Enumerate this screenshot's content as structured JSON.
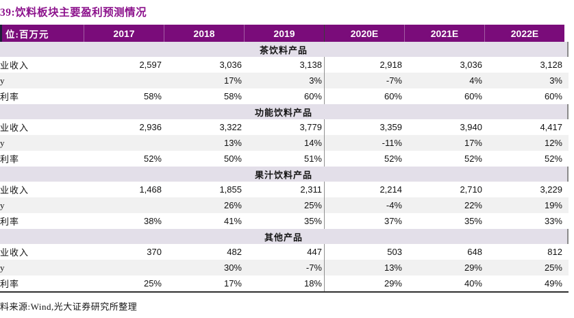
{
  "title": "39:饮料板块主要盈利预测情况",
  "header": {
    "unit_label": "位:百万元",
    "columns": [
      "2017",
      "2018",
      "2019",
      "2020E",
      "2021E",
      "2022E"
    ]
  },
  "groups": [
    {
      "name": "茶饮料产品",
      "rows": [
        {
          "label": "业收入",
          "values": [
            "2,597",
            "3,036",
            "3,138",
            "2,918",
            "3,036",
            "3,128"
          ]
        },
        {
          "label": "y",
          "values": [
            "",
            "17%",
            "3%",
            "-7%",
            "4%",
            "3%"
          ]
        },
        {
          "label": "利率",
          "values": [
            "58%",
            "58%",
            "60%",
            "60%",
            "60%",
            "60%"
          ]
        }
      ]
    },
    {
      "name": "功能饮料产品",
      "rows": [
        {
          "label": "业收入",
          "values": [
            "2,936",
            "3,322",
            "3,779",
            "3,359",
            "3,940",
            "4,417"
          ]
        },
        {
          "label": "y",
          "values": [
            "",
            "13%",
            "14%",
            "-11%",
            "17%",
            "12%"
          ]
        },
        {
          "label": "利率",
          "values": [
            "52%",
            "50%",
            "51%",
            "52%",
            "52%",
            "52%"
          ]
        }
      ]
    },
    {
      "name": "果汁饮料产品",
      "rows": [
        {
          "label": "业收入",
          "values": [
            "1,468",
            "1,855",
            "2,311",
            "2,214",
            "2,710",
            "3,229"
          ]
        },
        {
          "label": "y",
          "values": [
            "",
            "26%",
            "25%",
            "-4%",
            "22%",
            "19%"
          ]
        },
        {
          "label": "利率",
          "values": [
            "38%",
            "41%",
            "35%",
            "37%",
            "35%",
            "33%"
          ]
        }
      ]
    },
    {
      "name": "其他产品",
      "rows": [
        {
          "label": "业收入",
          "values": [
            "370",
            "482",
            "447",
            "503",
            "648",
            "812"
          ]
        },
        {
          "label": "y",
          "values": [
            "",
            "30%",
            "-7%",
            "13%",
            "29%",
            "25%"
          ]
        },
        {
          "label": "利率",
          "values": [
            "25%",
            "17%",
            "18%",
            "29%",
            "40%",
            "49%"
          ]
        }
      ]
    }
  ],
  "source": "料来源:Wind,光大证券研究所整理",
  "colors": {
    "header_bg": "#7a0c7a",
    "band_bg": "#e3dfe9",
    "stripe_bg": "#f1f1f1",
    "title_text": "#8c128c",
    "forecast_divider": "#8f8f8f",
    "bottom_rule": "#2e2e2e"
  }
}
